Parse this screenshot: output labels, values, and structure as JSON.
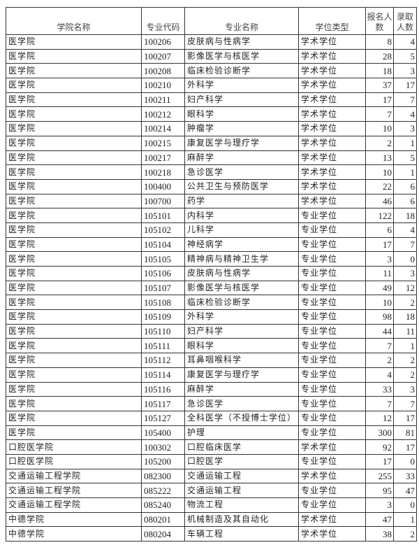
{
  "headers": {
    "college": "学院名称",
    "code": "专业代码",
    "major": "专业名称",
    "degree": "学位类型",
    "applicants": "报名人数",
    "admitted": "录取人数"
  },
  "rows": [
    [
      "医学院",
      "100206",
      "皮肤病与性病学",
      "学术学位",
      "8",
      "4"
    ],
    [
      "医学院",
      "100207",
      "影像医学与核医学",
      "学术学位",
      "28",
      "5"
    ],
    [
      "医学院",
      "100208",
      "临床检验诊断学",
      "学术学位",
      "18",
      "3"
    ],
    [
      "医学院",
      "100210",
      "外科学",
      "学术学位",
      "37",
      "17"
    ],
    [
      "医学院",
      "100211",
      "妇产科学",
      "学术学位",
      "17",
      "7"
    ],
    [
      "医学院",
      "100212",
      "眼科学",
      "学术学位",
      "7",
      "4"
    ],
    [
      "医学院",
      "100214",
      "肿瘤学",
      "学术学位",
      "10",
      "3"
    ],
    [
      "医学院",
      "100215",
      "康复医学与理疗学",
      "学术学位",
      "2",
      "1"
    ],
    [
      "医学院",
      "100217",
      "麻醉学",
      "学术学位",
      "13",
      "5"
    ],
    [
      "医学院",
      "100218",
      "急诊医学",
      "学术学位",
      "10",
      "1"
    ],
    [
      "医学院",
      "100400",
      "公共卫生与预防医学",
      "学术学位",
      "22",
      "6"
    ],
    [
      "医学院",
      "100700",
      "药学",
      "学术学位",
      "46",
      "6"
    ],
    [
      "医学院",
      "105101",
      "内科学",
      "专业学位",
      "122",
      "18"
    ],
    [
      "医学院",
      "105102",
      "儿科学",
      "专业学位",
      "6",
      "4"
    ],
    [
      "医学院",
      "105104",
      "神经病学",
      "专业学位",
      "17",
      "7"
    ],
    [
      "医学院",
      "105105",
      "精神病与精神卫生学",
      "专业学位",
      "3",
      "0"
    ],
    [
      "医学院",
      "105106",
      "皮肤病与性病学",
      "专业学位",
      "11",
      "3"
    ],
    [
      "医学院",
      "105107",
      "影像医学与核医学",
      "专业学位",
      "49",
      "12"
    ],
    [
      "医学院",
      "105108",
      "临床检验诊断学",
      "专业学位",
      "10",
      "2"
    ],
    [
      "医学院",
      "105109",
      "外科学",
      "专业学位",
      "98",
      "18"
    ],
    [
      "医学院",
      "105110",
      "妇产科学",
      "专业学位",
      "44",
      "11"
    ],
    [
      "医学院",
      "105111",
      "眼科学",
      "专业学位",
      "7",
      "1"
    ],
    [
      "医学院",
      "105112",
      "耳鼻咽喉科学",
      "专业学位",
      "2",
      "2"
    ],
    [
      "医学院",
      "105114",
      "康复医学与理疗学",
      "专业学位",
      "4",
      "2"
    ],
    [
      "医学院",
      "105116",
      "麻醉学",
      "专业学位",
      "33",
      "3"
    ],
    [
      "医学院",
      "105117",
      "急诊医学",
      "专业学位",
      "7",
      "7"
    ],
    [
      "医学院",
      "105127",
      "全科医学（不授博士学位）",
      "专业学位",
      "12",
      "17"
    ],
    [
      "医学院",
      "105400",
      "护理",
      "专业学位",
      "300",
      "81"
    ],
    [
      "口腔医学院",
      "100302",
      "口腔临床医学",
      "学术学位",
      "92",
      "17"
    ],
    [
      "口腔医学院",
      "105200",
      "口腔医学",
      "专业学位",
      "17",
      "0"
    ],
    [
      "交通运输工程学院",
      "082300",
      "交通运输工程",
      "学术学位",
      "255",
      "33"
    ],
    [
      "交通运输工程学院",
      "085222",
      "交通运输工程",
      "专业学位",
      "95",
      "47"
    ],
    [
      "交通运输工程学院",
      "085240",
      "物流工程",
      "专业学位",
      "3",
      "0"
    ],
    [
      "中德学院",
      "080201",
      "机械制造及其自动化",
      "学术学位",
      "47",
      "1"
    ],
    [
      "中德学院",
      "080204",
      "车辆工程",
      "学术学位",
      "38",
      "2"
    ]
  ]
}
